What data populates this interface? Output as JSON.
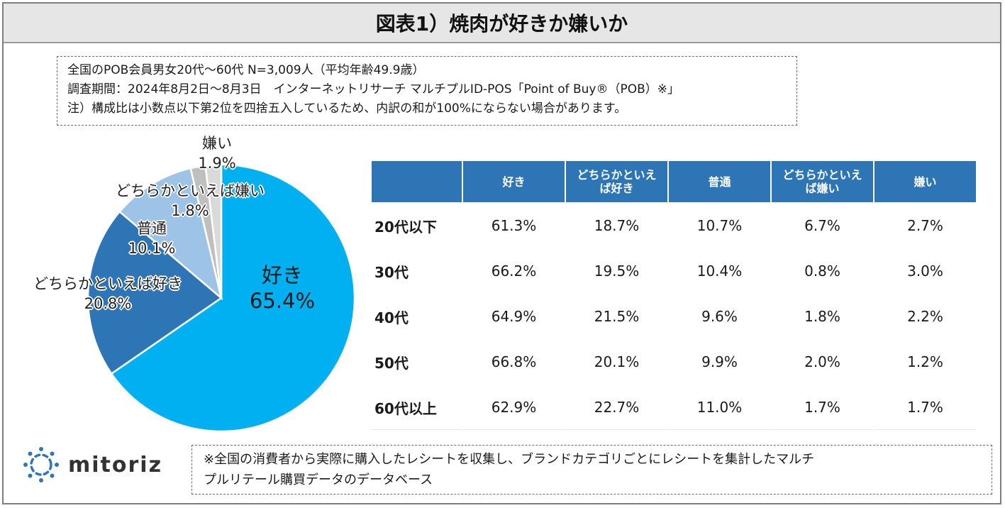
{
  "title": "図表1）焼肉が好きか嫌いか",
  "notes": [
    "全国のPOB会員男女20代～60代 N=3,009人（平均年齢49.9歳）",
    "調査期間：2024年8月2日～8月3日　インターネットリサーチ マルチプルID-POS「Point of Buy®（POB）※」",
    "注）構成比は小数点以下第2位を四捨五入しているため、内訳の和が100%にならない場合があります。"
  ],
  "chart_data": [
    {
      "type": "pie",
      "categories": [
        "好き",
        "どちらかといえば好き",
        "普通",
        "どちらかといえば嫌い",
        "嫌い"
      ],
      "values": [
        65.4,
        20.8,
        10.1,
        1.8,
        1.9
      ],
      "value_labels": [
        "65.4%",
        "20.8%",
        "10.1%",
        "1.8%",
        "1.9%"
      ],
      "colors": [
        "#00b0f0",
        "#2e75b6",
        "#9dc3e6",
        "#bfbfbf",
        "#d9d9d9"
      ],
      "start": "12 o'clock",
      "direction": "clockwise"
    },
    {
      "type": "table",
      "columns": [
        "",
        "好き",
        "どちらかといえば好き",
        "普通",
        "どちらかといえば嫌い",
        "嫌い"
      ],
      "column_lines": [
        [
          ""
        ],
        [
          "好き"
        ],
        [
          "どちらかといえ",
          "ば好き"
        ],
        [
          "普通"
        ],
        [
          "どちらかといえ",
          "ば嫌い"
        ],
        [
          "嫌い"
        ]
      ],
      "rows": [
        {
          "label": "20代以下",
          "values": [
            "61.3%",
            "18.7%",
            "10.7%",
            "6.7%",
            "2.7%"
          ]
        },
        {
          "label": "30代",
          "values": [
            "66.2%",
            "19.5%",
            "10.4%",
            "0.8%",
            "3.0%"
          ]
        },
        {
          "label": "40代",
          "values": [
            "64.9%",
            "21.5%",
            "9.6%",
            "1.8%",
            "2.2%"
          ]
        },
        {
          "label": "50代",
          "values": [
            "66.8%",
            "20.1%",
            "9.9%",
            "2.0%",
            "1.2%"
          ]
        },
        {
          "label": "60代以上",
          "values": [
            "62.9%",
            "22.7%",
            "11.0%",
            "1.7%",
            "1.7%"
          ]
        }
      ],
      "header_color": "#2e75b6"
    }
  ],
  "logo": {
    "text": "mitoriz",
    "icon": "mitoriz-logo-icon",
    "color": "#2e75b6"
  },
  "footnote_lines": [
    "※全国の消費者から実際に購入したレシートを収集し、ブランドカテゴリごとにレシートを集計したマルチ",
    "プルリテール購買データのデータベース"
  ]
}
